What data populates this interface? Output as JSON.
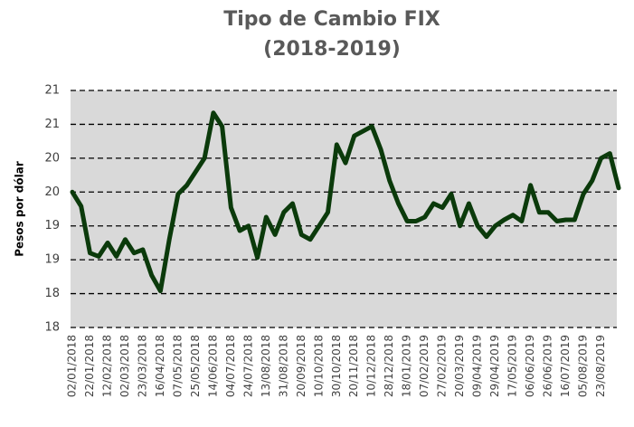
{
  "chart_data": {
    "type": "line",
    "title": "Tipo de Cambio FIX",
    "subtitle": "(2018-2019)",
    "y_label": "Pesos por dólar",
    "categories": [
      "02/01/2018",
      null,
      "22/01/2018",
      null,
      "12/02/2018",
      null,
      "02/03/2018",
      null,
      "23/03/2018",
      null,
      "16/04/2018",
      null,
      "07/05/2018",
      null,
      "25/05/2018",
      null,
      "14/06/2018",
      null,
      "04/07/2018",
      null,
      "24/07/2018",
      null,
      "13/08/2018",
      null,
      "31/08/2018",
      null,
      "20/09/2018",
      null,
      "10/10/2018",
      null,
      "30/10/2018",
      null,
      "20/11/2018",
      null,
      "10/12/2018",
      null,
      "28/12/2018",
      null,
      "18/01/2019",
      null,
      "07/02/2019",
      null,
      "27/02/2019",
      null,
      "20/03/2019",
      null,
      "09/04/2019",
      null,
      "29/04/2019",
      null,
      "17/05/2019",
      null,
      "06/06/2019",
      null,
      "26/06/2019",
      null,
      "16/07/2019",
      null,
      "05/08/2019",
      null,
      "23/08/2019",
      null,
      null
    ],
    "series": [
      {
        "name": "FIX",
        "color": "#0b3a0b",
        "values": [
          19.5,
          19.29,
          18.6,
          18.55,
          18.75,
          18.55,
          18.8,
          18.6,
          18.65,
          18.27,
          18.04,
          18.8,
          19.47,
          19.6,
          19.8,
          20.0,
          20.67,
          20.47,
          19.27,
          18.93,
          19.0,
          18.53,
          19.13,
          18.87,
          19.2,
          19.33,
          18.87,
          18.8,
          19.0,
          19.2,
          20.2,
          19.93,
          20.33,
          20.4,
          20.47,
          20.13,
          19.67,
          19.33,
          19.07,
          19.07,
          19.13,
          19.33,
          19.27,
          19.47,
          19.0,
          19.33,
          19.0,
          18.84,
          19.0,
          19.09,
          19.16,
          19.07,
          19.6,
          19.2,
          19.2,
          19.07,
          19.09,
          19.09,
          19.47,
          19.67,
          20.0,
          20.07,
          19.56
        ]
      }
    ],
    "ylim": [
      17.5,
      21
    ],
    "yticks": [
      {
        "value": 17.5,
        "label": "18"
      },
      18,
      {
        "value": 18.5,
        "label": "19"
      },
      19,
      {
        "value": 19.5,
        "label": "20"
      },
      20,
      {
        "value": 20.5,
        "label": "21"
      },
      21
    ],
    "grid": true
  }
}
